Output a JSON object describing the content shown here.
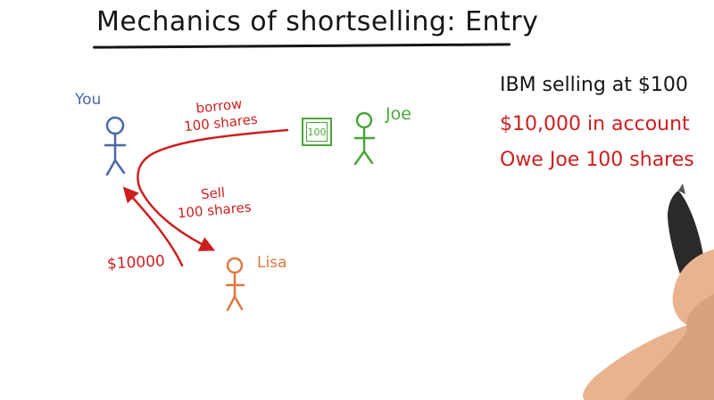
{
  "title": "Mechanics of shortselling: Entry",
  "people": {
    "you": "You",
    "joe": "Joe",
    "lisa": "Lisa"
  },
  "certificate": {
    "label": "100"
  },
  "arrows": {
    "borrow": "borrow\n100 shares",
    "sell": "Sell\n100 shares",
    "money": "$10000"
  },
  "notes": {
    "ibm_price": "IBM selling at $100",
    "account": "$10,000 in account",
    "owe": "Owe Joe 100 shares"
  },
  "colors": {
    "ink": "#151515",
    "you": "#4a68a8",
    "joe": "#4aa63a",
    "lisa": "#e0783f",
    "red": "#cc2020"
  }
}
